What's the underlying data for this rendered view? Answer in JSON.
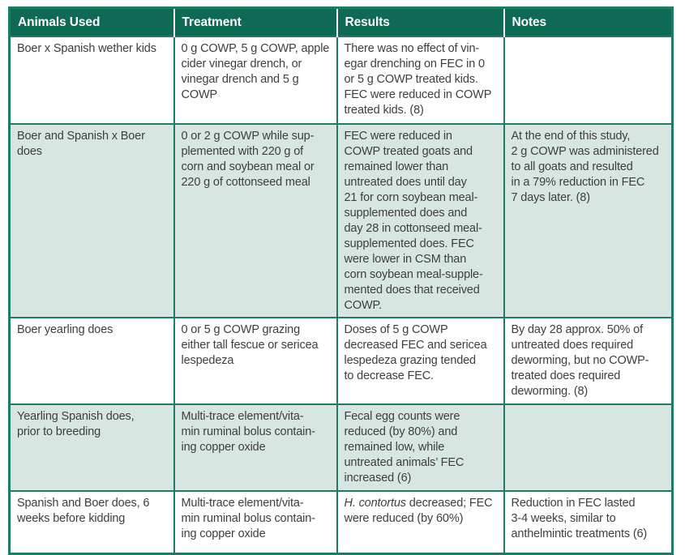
{
  "theme": {
    "header_bg": "#0E6A54",
    "header_text": "#FFFFFF",
    "border_color": "#1D7C66",
    "row_stripe": "#D8E6E1",
    "row_plain": "#FFFFFF",
    "body_text": "#3E3E3E"
  },
  "table": {
    "columns": [
      "Animals Used",
      "Treatment",
      "Results",
      "Notes"
    ],
    "rows": [
      {
        "animals": "Boer x Spanish wether kids",
        "treatment": "0 g COWP, 5 g COWP, apple\ncider vinegar drench, or\nvinegar drench and 5 g\nCOWP",
        "results": "There was no effect of vin-\negar drenching on FEC in 0\nor 5 g COWP treated kids.\nFEC were reduced in COWP\ntreated kids. (8)",
        "notes": ""
      },
      {
        "animals": "Boer and Spanish x Boer\ndoes",
        "treatment": "0 or 2 g COWP while sup-\nplemented with 220 g of\ncorn and soybean meal or\n220 g of cottonseed meal",
        "results": "FEC were reduced in\nCOWP treated goats and\nremained lower than\nuntreated does until day\n21 for corn soybean meal-\nsupplemented does and\nday 28 in cottonseed meal-\nsupplemented does. FEC\nwere lower in CSM than\ncorn soybean meal-supple-\nmented does that received\nCOWP.",
        "notes": "At the end of this study,\n2 g COWP was administered\nto all goats and resulted\nin a 79% reduction in FEC\n7 days later. (8)"
      },
      {
        "animals": "Boer yearling does",
        "treatment": "0 or 5 g COWP grazing\neither tall fescue or sericea\nlespedeza",
        "results": "Doses of 5 g COWP\ndecreased FEC and sericea\nlespedeza grazing tended\nto decrease FEC.",
        "notes": "By day 28 approx. 50% of\nuntreated does required\ndeworming, but no COWP-\ntreated does required\ndeworming. (8)"
      },
      {
        "animals": "Yearling Spanish does,\nprior to breeding",
        "treatment": "Multi-trace element/vita-\nmin ruminal bolus contain-\ning copper oxide",
        "results": "Fecal egg counts were\nreduced (by 80%) and\nremained low, while\nuntreated animals’ FEC\nincreased (6)",
        "notes": ""
      },
      {
        "animals": "Spanish and Boer does, 6\nweeks before kidding",
        "treatment": "Multi-trace element/vita-\nmin ruminal bolus contain-\ning copper oxide",
        "results_italic": "H. contortus",
        "results_rest": " decreased; FEC\nwere reduced (by 60%)",
        "notes": "Reduction in FEC lasted\n3-4 weeks, similar to\nanthelmintic treatments (6)"
      }
    ]
  }
}
